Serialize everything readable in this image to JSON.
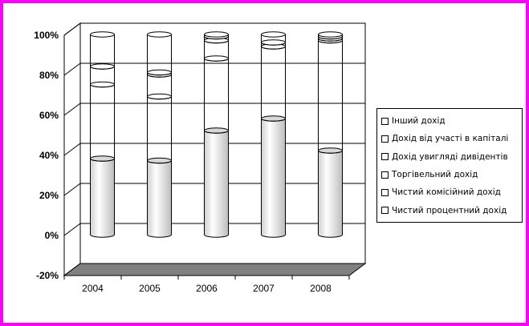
{
  "chart_data": {
    "type": "bar",
    "stacked": "percent",
    "style": "3d-cylinder",
    "categories": [
      "2004",
      "2005",
      "2006",
      "2007",
      "2008"
    ],
    "ylim": [
      -20,
      100
    ],
    "yticks": [
      -20,
      0,
      20,
      40,
      60,
      80,
      100
    ],
    "ytick_suffix": "%",
    "grid": true,
    "legend_position": "right",
    "series": [
      {
        "name": "Чистий процентний дохід",
        "values": [
          38,
          37,
          52,
          58,
          42
        ]
      },
      {
        "name": "Чистий комісійний дохід",
        "values": [
          37,
          32,
          36,
          36,
          55
        ]
      },
      {
        "name": "Торгівельний дохід",
        "values": [
          9,
          11,
          9,
          0,
          0
        ]
      },
      {
        "name": "Дохід увигляді дивідентів",
        "values": [
          0,
          1,
          2,
          0,
          1
        ]
      },
      {
        "name": "Дохід від участі в капіталі",
        "values": [
          0,
          0,
          0,
          2,
          1
        ]
      },
      {
        "name": "Інший дохід",
        "values": [
          16,
          19,
          1,
          4,
          1
        ]
      }
    ]
  }
}
